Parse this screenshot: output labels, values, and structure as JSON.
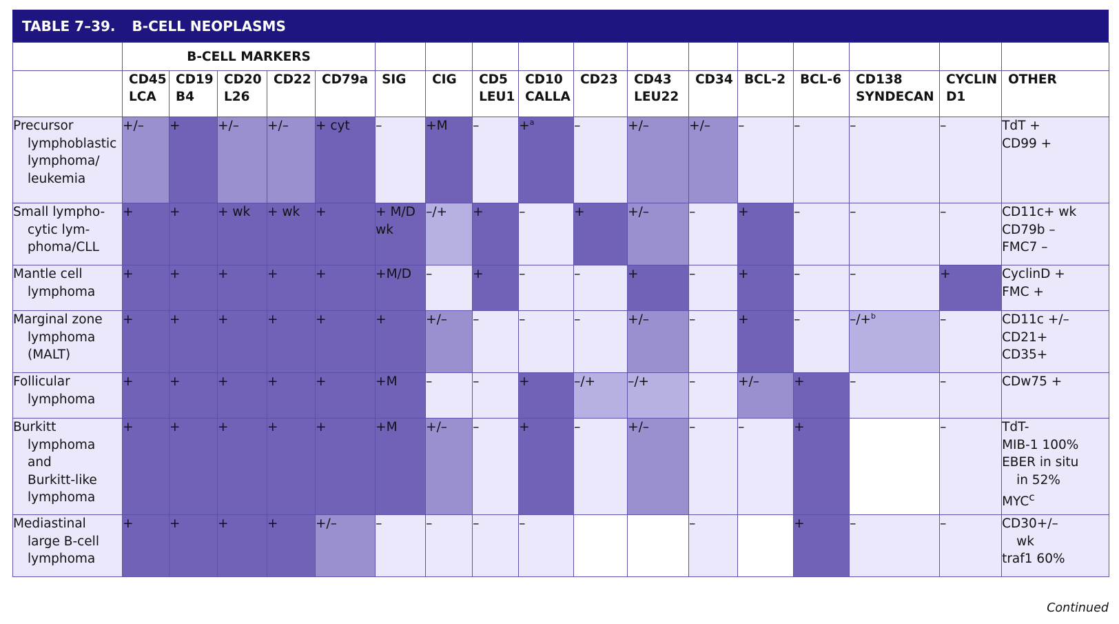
{
  "table": {
    "number": "TABLE 7–39.",
    "title": "B-CELL NEOPLASMS",
    "group_header": "B-CELL MARKERS",
    "columns": [
      [
        "CD45",
        "LCA"
      ],
      [
        "CD19",
        "B4"
      ],
      [
        "CD20",
        "L26"
      ],
      [
        "CD22"
      ],
      [
        "CD79a"
      ],
      [
        "SIG"
      ],
      [
        "CIG"
      ],
      [
        "CD5",
        "LEU1"
      ],
      [
        "CD10",
        "CALLA"
      ],
      [
        "CD23"
      ],
      [
        "CD43",
        "LEU22"
      ],
      [
        "CD34"
      ],
      [
        "BCL-2"
      ],
      [
        "BCL-6"
      ],
      [
        "CD138",
        "SYNDECAN"
      ],
      [
        "CYCLIN",
        "D1"
      ],
      [
        "OTHER"
      ]
    ],
    "rows": [
      {
        "label": [
          "Precursor",
          "lymphoblastic",
          "lymphoma/",
          "leukemia"
        ],
        "cells": [
          {
            "t": "+/–",
            "s": "med"
          },
          {
            "t": "+",
            "s": "dark"
          },
          {
            "t": "+/–",
            "s": "med"
          },
          {
            "t": "+/–",
            "s": "med"
          },
          {
            "t": "+ cyt",
            "s": "dark"
          },
          {
            "t": "–",
            "s": "pale"
          },
          {
            "t": "+M",
            "s": "dark"
          },
          {
            "t": "–",
            "s": "pale"
          },
          {
            "t": "+",
            "sup": "a",
            "s": "dark"
          },
          {
            "t": "–",
            "s": "pale"
          },
          {
            "t": "+/–",
            "s": "med"
          },
          {
            "t": "+/–",
            "s": "med"
          },
          {
            "t": "–",
            "s": "pale"
          },
          {
            "t": "–",
            "s": "pale"
          },
          {
            "t": "–",
            "s": "pale"
          },
          {
            "t": "–",
            "s": "pale"
          }
        ],
        "other": [
          "TdT +",
          "CD99 +"
        ]
      },
      {
        "label": [
          "Small lympho-",
          "cytic lym-",
          "phoma/CLL"
        ],
        "cells": [
          {
            "t": "+",
            "s": "dark"
          },
          {
            "t": "+",
            "s": "dark"
          },
          {
            "t": "+ wk",
            "s": "dark"
          },
          {
            "t": "+ wk",
            "s": "dark"
          },
          {
            "t": "+",
            "s": "dark"
          },
          {
            "t": "+ M/D",
            "t2": "wk",
            "s": "dark"
          },
          {
            "t": "–/+",
            "s": "light"
          },
          {
            "t": "+",
            "s": "dark"
          },
          {
            "t": "–",
            "s": "pale"
          },
          {
            "t": "+",
            "s": "dark"
          },
          {
            "t": "+/–",
            "s": "med"
          },
          {
            "t": "–",
            "s": "pale"
          },
          {
            "t": "+",
            "s": "dark"
          },
          {
            "t": "–",
            "s": "pale"
          },
          {
            "t": "–",
            "s": "pale"
          },
          {
            "t": "–",
            "s": "pale"
          }
        ],
        "other": [
          "CD11c+ wk",
          "CD79b –",
          "FMC7 –"
        ]
      },
      {
        "label": [
          "Mantle cell",
          "lymphoma"
        ],
        "cells": [
          {
            "t": "+",
            "s": "dark"
          },
          {
            "t": "+",
            "s": "dark"
          },
          {
            "t": "+",
            "s": "dark"
          },
          {
            "t": "+",
            "s": "dark"
          },
          {
            "t": "+",
            "s": "dark"
          },
          {
            "t": "+M/D",
            "s": "dark"
          },
          {
            "t": "–",
            "s": "pale"
          },
          {
            "t": "+",
            "s": "dark"
          },
          {
            "t": "–",
            "s": "pale"
          },
          {
            "t": "–",
            "s": "pale"
          },
          {
            "t": "+",
            "s": "dark"
          },
          {
            "t": "–",
            "s": "pale"
          },
          {
            "t": "+",
            "s": "dark"
          },
          {
            "t": "–",
            "s": "pale"
          },
          {
            "t": "–",
            "s": "pale"
          },
          {
            "t": "+",
            "s": "dark"
          }
        ],
        "other": [
          "CyclinD +",
          "FMC +"
        ]
      },
      {
        "label": [
          "Marginal zone",
          "lymphoma",
          "(MALT)"
        ],
        "cells": [
          {
            "t": "+",
            "s": "dark"
          },
          {
            "t": "+",
            "s": "dark"
          },
          {
            "t": "+",
            "s": "dark"
          },
          {
            "t": "+",
            "s": "dark"
          },
          {
            "t": "+",
            "s": "dark"
          },
          {
            "t": "+",
            "s": "dark"
          },
          {
            "t": "+/–",
            "s": "med"
          },
          {
            "t": "–",
            "s": "pale"
          },
          {
            "t": "–",
            "s": "pale"
          },
          {
            "t": "–",
            "s": "pale"
          },
          {
            "t": "+/–",
            "s": "med"
          },
          {
            "t": "–",
            "s": "pale"
          },
          {
            "t": "+",
            "s": "dark"
          },
          {
            "t": "–",
            "s": "pale"
          },
          {
            "t": "–/+",
            "sup": "b",
            "s": "light"
          },
          {
            "t": "–",
            "s": "pale"
          }
        ],
        "other": [
          "CD11c +/–",
          "CD21+",
          "CD35+"
        ]
      },
      {
        "label": [
          "Follicular",
          "lymphoma"
        ],
        "cells": [
          {
            "t": "+",
            "s": "dark"
          },
          {
            "t": "+",
            "s": "dark"
          },
          {
            "t": "+",
            "s": "dark"
          },
          {
            "t": "+",
            "s": "dark"
          },
          {
            "t": "+",
            "s": "dark"
          },
          {
            "t": "+M",
            "s": "dark"
          },
          {
            "t": "–",
            "s": "pale"
          },
          {
            "t": "–",
            "s": "pale"
          },
          {
            "t": "+",
            "s": "dark"
          },
          {
            "t": "–/+",
            "s": "light"
          },
          {
            "t": "–/+",
            "s": "light"
          },
          {
            "t": "–",
            "s": "pale"
          },
          {
            "t": "+/–",
            "s": "med"
          },
          {
            "t": "+",
            "s": "dark"
          },
          {
            "t": "–",
            "s": "pale"
          },
          {
            "t": "–",
            "s": "pale"
          }
        ],
        "other": [
          "CDw75 +"
        ]
      },
      {
        "label": [
          "Burkitt",
          "lymphoma",
          "and",
          "Burkitt-like",
          "lymphoma"
        ],
        "cells": [
          {
            "t": "+",
            "s": "dark"
          },
          {
            "t": "+",
            "s": "dark"
          },
          {
            "t": "+",
            "s": "dark"
          },
          {
            "t": "+",
            "s": "dark"
          },
          {
            "t": "+",
            "s": "dark"
          },
          {
            "t": "+M",
            "s": "dark"
          },
          {
            "t": "+/–",
            "s": "med"
          },
          {
            "t": "–",
            "s": "pale"
          },
          {
            "t": "+",
            "s": "dark"
          },
          {
            "t": "–",
            "s": "pale"
          },
          {
            "t": "+/–",
            "s": "med"
          },
          {
            "t": "–",
            "s": "pale"
          },
          {
            "t": "–",
            "s": "pale"
          },
          {
            "t": "+",
            "s": "dark"
          },
          {
            "t": "",
            "s": "white"
          },
          {
            "t": "–",
            "s": "pale"
          }
        ],
        "other": [
          "TdT-",
          "MIB-1 100%",
          "EBER in situ",
          "in 52%",
          "MYC"
        ],
        "other_indent": [
          false,
          false,
          false,
          true,
          false
        ],
        "other_sup": "c"
      },
      {
        "label": [
          "Mediastinal",
          "large B-cell",
          "lymphoma"
        ],
        "cells": [
          {
            "t": "+",
            "s": "dark"
          },
          {
            "t": "+",
            "s": "dark"
          },
          {
            "t": "+",
            "s": "dark"
          },
          {
            "t": "+",
            "s": "dark"
          },
          {
            "t": "+/–",
            "s": "med"
          },
          {
            "t": "–",
            "s": "pale"
          },
          {
            "t": "–",
            "s": "pale"
          },
          {
            "t": "–",
            "s": "pale"
          },
          {
            "t": "–",
            "s": "pale"
          },
          {
            "t": "",
            "s": "white"
          },
          {
            "t": "",
            "s": "white"
          },
          {
            "t": "–",
            "s": "pale"
          },
          {
            "t": "",
            "s": "white"
          },
          {
            "t": "+",
            "s": "dark"
          },
          {
            "t": "–",
            "s": "pale"
          },
          {
            "t": "–",
            "s": "pale"
          }
        ],
        "other": [
          "CD30+/–",
          "wk",
          "traf1 60%"
        ],
        "other_indent": [
          false,
          true,
          false
        ]
      }
    ],
    "colors": {
      "title_bar": "#1e1580",
      "dark": "#7162b8",
      "med": "#9a8fcf",
      "light": "#b6b0e3",
      "pale": "#ebe8fc",
      "white": "#ffffff",
      "border": "#5a52a8"
    }
  },
  "footer": {
    "continued": "Continued"
  }
}
